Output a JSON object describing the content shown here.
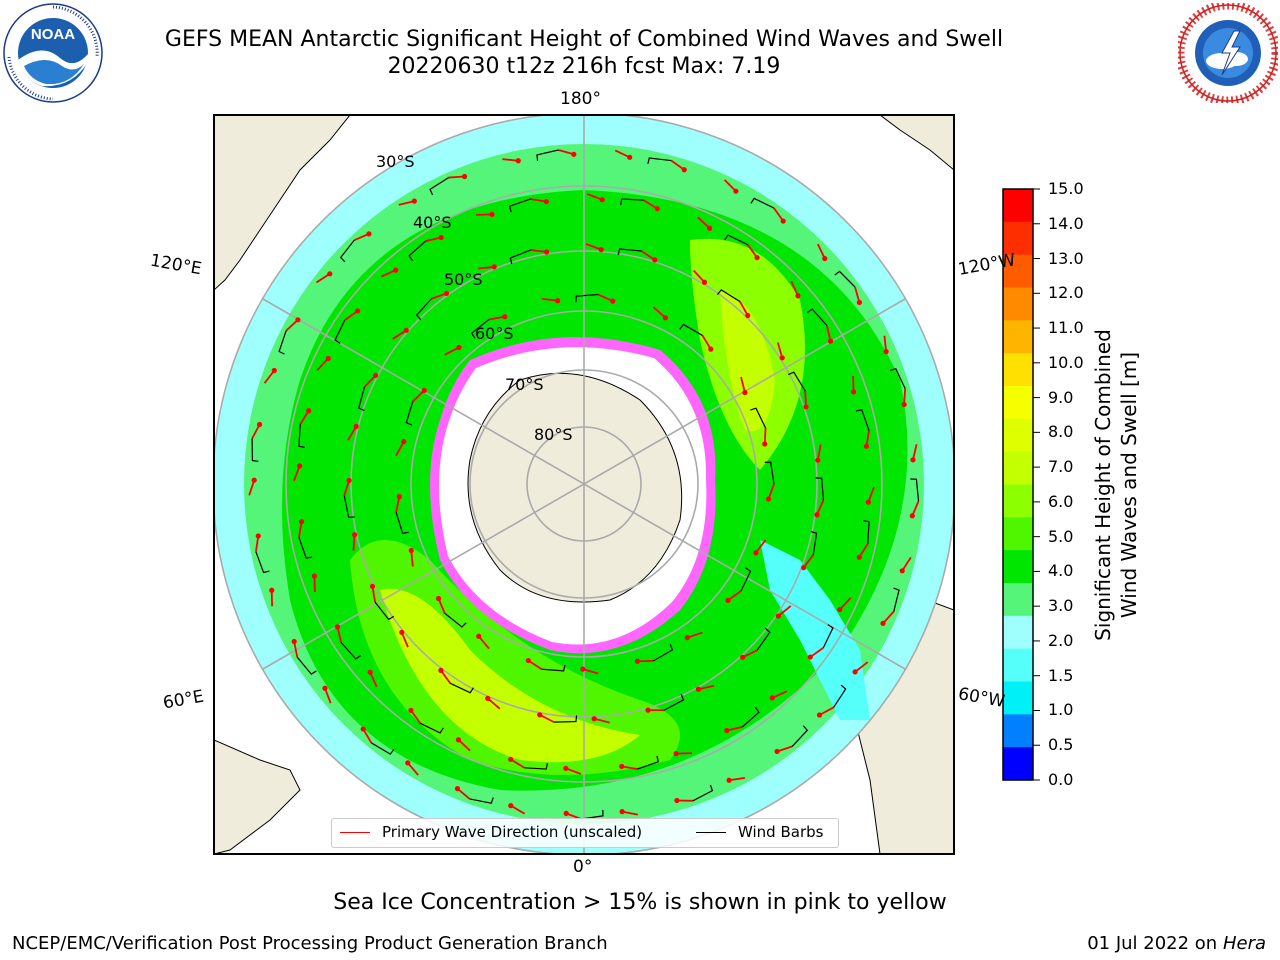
{
  "header": {
    "title_line1": "GEFS MEAN Antarctic Significant Height of Combined Wind Waves and Swell",
    "title_line2": "20220630 t12z 216h fcst   Max: 7.19"
  },
  "logos": {
    "noaa": {
      "text": "NOAA",
      "ring_text": "NATIONAL OCEANIC AND ATMOSPHERIC ADMINISTRATION · U.S. DEPARTMENT OF COMMERCE"
    },
    "nws": {
      "ring_text": "NATIONAL WEATHER SERVICE"
    }
  },
  "map": {
    "projection": "south-polar-stereographic",
    "longitude_labels": {
      "top": "180°",
      "bottom": "0°",
      "upper_left": "120°E",
      "upper_right": "120°W",
      "lower_left": "60°E",
      "lower_right": "60°W"
    },
    "latitude_labels": [
      "30°S",
      "40°S",
      "50°S",
      "60°S",
      "70°S",
      "80°S"
    ],
    "max_value": 7.19
  },
  "legend": {
    "wave_label": "Primary Wave Direction (unscaled)",
    "wave_color": "#ff0000",
    "wind_label": "Wind Barbs",
    "wind_color": "#000000"
  },
  "colorbar": {
    "label_line1": "Significant Height of Combined",
    "label_line2": "Wind Waves and Swell [m]",
    "ticks": [
      "15.0",
      "14.0",
      "13.0",
      "12.0",
      "11.0",
      "10.0",
      "9.0",
      "8.0",
      "7.0",
      "6.0",
      "5.0",
      "4.0",
      "3.0",
      "2.0",
      "1.5",
      "1.0",
      "0.5",
      "0.0"
    ],
    "colors_top_to_bottom": [
      "#ff0000",
      "#ff2e00",
      "#ff5c00",
      "#ff8a00",
      "#ffb400",
      "#ffe000",
      "#f5ff00",
      "#ddff00",
      "#c4ff00",
      "#8cff00",
      "#50f500",
      "#00e600",
      "#55f57a",
      "#9ffffc",
      "#55fffa",
      "#00f0f8",
      "#0080ff",
      "#0000ff"
    ]
  },
  "chart_data": {
    "type": "heatmap",
    "variable": "Significant Height of Combined Wind Waves and Swell",
    "units": "m",
    "init": "20220630 t12z",
    "forecast_hour": "216h",
    "max": 7.19,
    "color_levels": [
      0.0,
      0.5,
      1.0,
      1.5,
      2.0,
      3.0,
      4.0,
      5.0,
      6.0,
      7.0,
      8.0,
      9.0,
      10.0,
      11.0,
      12.0,
      13.0,
      14.0,
      15.0
    ]
  },
  "notes": {
    "sea_ice": "Sea Ice Concentration > 15% is shown in pink to yellow"
  },
  "footer": {
    "left": "NCEP/EMC/Verification Post Processing Product Generation Branch",
    "right_prefix": "01 Jul 2022 on ",
    "right_machine": "Hera"
  }
}
